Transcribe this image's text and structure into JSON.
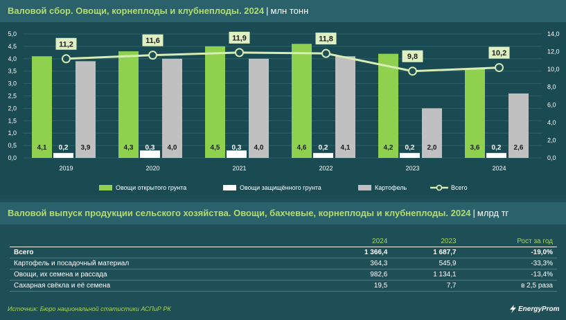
{
  "chart_header": {
    "title": "Валовой сбор. Овощи, корнеплоды и клубнеплоды. 2024",
    "separator": "|",
    "unit": "млн тонн"
  },
  "chart_data": {
    "type": "bar",
    "categories": [
      "2019",
      "2020",
      "2021",
      "2022",
      "2023",
      "2024"
    ],
    "series": [
      {
        "name": "Овощи открытого грунта",
        "type": "bar",
        "axis": "left",
        "color": "#8fd14f",
        "values": [
          4.1,
          4.3,
          4.5,
          4.6,
          4.2,
          3.6
        ],
        "labels": [
          "4,1",
          "4,3",
          "4,5",
          "4,6",
          "4,2",
          "3,6"
        ]
      },
      {
        "name": "Овощи защищённого грунта",
        "type": "bar",
        "axis": "left",
        "color": "#ffffff",
        "values": [
          0.2,
          0.3,
          0.3,
          0.2,
          0.2,
          0.2
        ],
        "labels": [
          "0,2",
          "0,3",
          "0,3",
          "0,2",
          "0,2",
          "0,2"
        ]
      },
      {
        "name": "Картофель",
        "type": "bar",
        "axis": "left",
        "color": "#c0c0c0",
        "values": [
          3.9,
          4.0,
          4.0,
          4.1,
          2.0,
          2.6
        ],
        "labels": [
          "3,9",
          "4,0",
          "4,0",
          "4,1",
          "2,0",
          "2,6"
        ]
      },
      {
        "name": "Всего",
        "type": "line",
        "axis": "right",
        "color": "#d8ecb4",
        "values": [
          11.2,
          11.6,
          11.9,
          11.8,
          9.8,
          10.2
        ],
        "labels": [
          "11,2",
          "11,6",
          "11,9",
          "11,8",
          "9,8",
          "10,2"
        ]
      }
    ],
    "y_left": {
      "ylim": [
        0,
        5
      ],
      "ticks": [
        "0,0",
        "0,5",
        "1,0",
        "1,5",
        "2,0",
        "2,5",
        "3,0",
        "3,5",
        "4,0",
        "4,5",
        "5,0"
      ]
    },
    "y_right": {
      "ylim": [
        0,
        14
      ],
      "ticks": [
        "0,0",
        "2,0",
        "4,0",
        "6,0",
        "8,0",
        "10,0",
        "12,0",
        "14,0"
      ]
    },
    "legend_position": "bottom"
  },
  "table_header": {
    "title": "Валовой выпуск продукции сельского хозяйства. Овощи, бахчевые, корнеплоды и клубнеплоды. 2024",
    "separator": "|",
    "unit": "млрд тг"
  },
  "table": {
    "columns": [
      "",
      "2024",
      "2023",
      "Рост за год"
    ],
    "rows": [
      {
        "label": "Всего",
        "v2024": "1 366,4",
        "v2023": "1 687,7",
        "growth": "-19,0%"
      },
      {
        "label": "Картофель и посадочный материал",
        "v2024": "364,3",
        "v2023": "545,9",
        "growth": "-33,3%"
      },
      {
        "label": "Овощи, их семена и рассада",
        "v2024": "982,6",
        "v2023": "1 134,1",
        "growth": "-13,4%"
      },
      {
        "label": "Сахарная свёкла и её семена",
        "v2024": "19,5",
        "v2023": "7,7",
        "growth": "в 2,5 раза"
      }
    ]
  },
  "footer": {
    "source": "Источник: Бюро национальной статистики АСПиР РК",
    "logo": "EnergyProm"
  }
}
